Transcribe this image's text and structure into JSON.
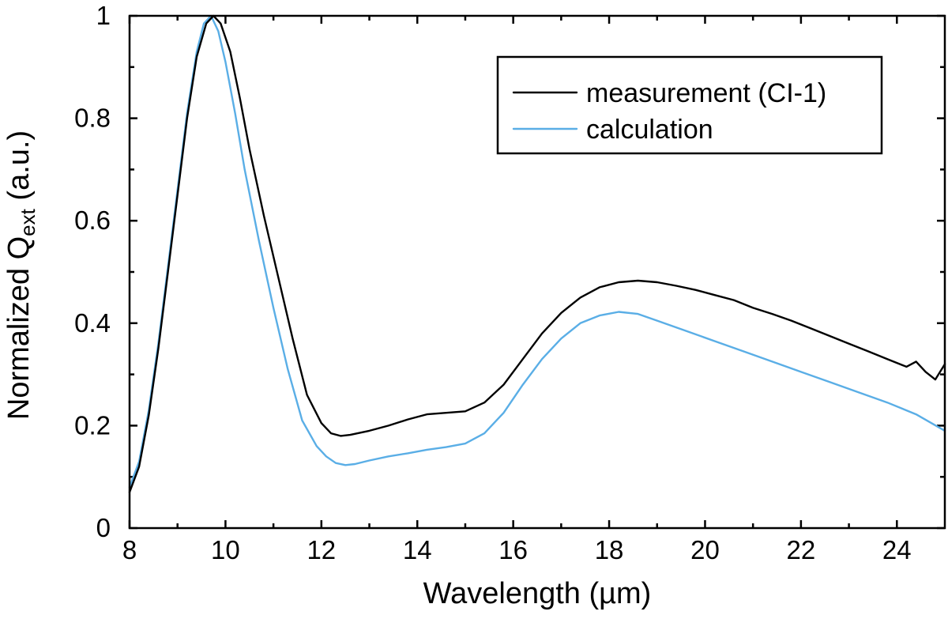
{
  "chart_data": {
    "type": "line",
    "title": "",
    "xlabel": "Wavelength (µm)",
    "ylabel": {
      "prefix": "Normalized Q",
      "subscript": "ext",
      "suffix": " (a.u.)"
    },
    "xlim": [
      8,
      25
    ],
    "ylim": [
      0,
      1
    ],
    "xticks": [
      8,
      10,
      12,
      14,
      16,
      18,
      20,
      22,
      24
    ],
    "yticks": [
      0,
      0.2,
      0.4,
      0.6,
      0.8,
      1
    ],
    "xtick_labels": [
      "8",
      "10",
      "12",
      "14",
      "16",
      "18",
      "20",
      "22",
      "24"
    ],
    "ytick_labels": [
      "0",
      "0.2",
      "0.4",
      "0.6",
      "0.8",
      "1"
    ],
    "legend_position": "top-right",
    "series": [
      {
        "name": "measurement (CI-1)",
        "color": "#000000",
        "x": [
          8.0,
          8.2,
          8.4,
          8.6,
          8.8,
          9.0,
          9.2,
          9.4,
          9.6,
          9.75,
          9.9,
          10.1,
          10.3,
          10.5,
          10.8,
          11.1,
          11.4,
          11.7,
          12.0,
          12.2,
          12.4,
          12.6,
          13.0,
          13.4,
          13.8,
          14.2,
          14.6,
          15.0,
          15.4,
          15.8,
          16.2,
          16.6,
          17.0,
          17.4,
          17.8,
          18.2,
          18.6,
          19.0,
          19.4,
          19.8,
          20.2,
          20.6,
          21.0,
          21.4,
          21.8,
          22.2,
          22.6,
          23.0,
          23.4,
          23.8,
          24.2,
          24.4,
          24.6,
          24.8,
          25.0
        ],
        "y": [
          0.07,
          0.12,
          0.22,
          0.35,
          0.5,
          0.65,
          0.8,
          0.92,
          0.985,
          1.0,
          0.985,
          0.93,
          0.84,
          0.74,
          0.61,
          0.49,
          0.37,
          0.26,
          0.205,
          0.185,
          0.18,
          0.182,
          0.19,
          0.2,
          0.212,
          0.222,
          0.225,
          0.228,
          0.245,
          0.28,
          0.33,
          0.38,
          0.42,
          0.45,
          0.47,
          0.48,
          0.483,
          0.48,
          0.473,
          0.465,
          0.455,
          0.445,
          0.43,
          0.418,
          0.405,
          0.39,
          0.375,
          0.36,
          0.345,
          0.33,
          0.315,
          0.325,
          0.305,
          0.29,
          0.32
        ]
      },
      {
        "name": "calculation",
        "color": "#5aaee6",
        "x": [
          8.0,
          8.2,
          8.4,
          8.6,
          8.8,
          9.0,
          9.2,
          9.4,
          9.55,
          9.7,
          9.85,
          10.0,
          10.2,
          10.4,
          10.7,
          11.0,
          11.3,
          11.6,
          11.9,
          12.1,
          12.3,
          12.5,
          12.7,
          13.0,
          13.4,
          13.8,
          14.2,
          14.6,
          15.0,
          15.4,
          15.8,
          16.2,
          16.6,
          17.0,
          17.4,
          17.8,
          18.2,
          18.6,
          19.0,
          19.6,
          20.2,
          20.8,
          21.4,
          22.0,
          22.6,
          23.2,
          23.8,
          24.4,
          25.0
        ],
        "y": [
          0.08,
          0.13,
          0.23,
          0.36,
          0.51,
          0.66,
          0.81,
          0.93,
          0.985,
          1.0,
          0.97,
          0.91,
          0.81,
          0.7,
          0.56,
          0.43,
          0.31,
          0.21,
          0.16,
          0.14,
          0.127,
          0.123,
          0.125,
          0.132,
          0.14,
          0.146,
          0.153,
          0.158,
          0.165,
          0.185,
          0.225,
          0.28,
          0.33,
          0.37,
          0.4,
          0.415,
          0.422,
          0.418,
          0.405,
          0.385,
          0.365,
          0.345,
          0.325,
          0.305,
          0.285,
          0.265,
          0.245,
          0.222,
          0.19
        ]
      }
    ]
  }
}
